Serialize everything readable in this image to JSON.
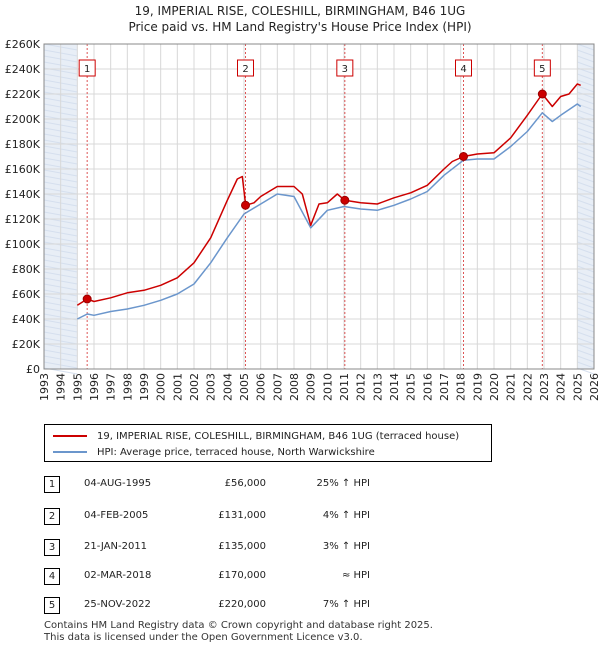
{
  "title_line1": "19, IMPERIAL RISE, COLESHILL, BIRMINGHAM, B46 1UG",
  "title_line2": "Price paid vs. HM Land Registry's House Price Index (HPI)",
  "legend": {
    "property": "19, IMPERIAL RISE, COLESHILL, BIRMINGHAM, B46 1UG (terraced house)",
    "hpi": "HPI: Average price, terraced house, North Warwickshire"
  },
  "colors": {
    "property": "#cc0000",
    "hpi": "#6b96cc",
    "grid": "#d8d8d8",
    "shade": "#e8eef6"
  },
  "transactions": [
    {
      "num": "1",
      "date": "04-AUG-1995",
      "price": "£56,000",
      "hpi": "25% ↑ HPI"
    },
    {
      "num": "2",
      "date": "04-FEB-2005",
      "price": "£131,000",
      "hpi": "4% ↑ HPI"
    },
    {
      "num": "3",
      "date": "21-JAN-2011",
      "price": "£135,000",
      "hpi": "3% ↑ HPI"
    },
    {
      "num": "4",
      "date": "02-MAR-2018",
      "price": "£170,000",
      "hpi": "≈ HPI"
    },
    {
      "num": "5",
      "date": "25-NOV-2022",
      "price": "£220,000",
      "hpi": "7% ↑ HPI"
    }
  ],
  "footer_line1": "Contains HM Land Registry data © Crown copyright and database right 2025.",
  "footer_line2": "This data is licensed under the Open Government Licence v3.0.",
  "chart_data": {
    "type": "line",
    "xlim": [
      1993,
      2026
    ],
    "ylim": [
      0,
      260000
    ],
    "x_ticks": [
      1993,
      1994,
      1995,
      1996,
      1997,
      1998,
      1999,
      2000,
      2001,
      2002,
      2003,
      2004,
      2005,
      2006,
      2007,
      2008,
      2009,
      2010,
      2011,
      2012,
      2013,
      2014,
      2015,
      2016,
      2017,
      2018,
      2019,
      2020,
      2021,
      2022,
      2023,
      2024,
      2025,
      2026
    ],
    "y_ticks": [
      0,
      20000,
      40000,
      60000,
      80000,
      100000,
      120000,
      140000,
      160000,
      180000,
      200000,
      220000,
      240000,
      260000
    ],
    "y_tick_labels": [
      "£0",
      "£20K",
      "£40K",
      "£60K",
      "£80K",
      "£100K",
      "£120K",
      "£140K",
      "£160K",
      "£180K",
      "£200K",
      "£220K",
      "£240K",
      "£260K"
    ],
    "shaded_before": 1995.0,
    "shaded_after": 2025.0,
    "series": [
      {
        "name": "19, IMPERIAL RISE, COLESHILL, BIRMINGHAM, B46 1UG (terraced house)",
        "color": "#cc0000",
        "points": [
          [
            1995.0,
            51000
          ],
          [
            1995.6,
            56000
          ],
          [
            1996.0,
            54000
          ],
          [
            1997.0,
            57000
          ],
          [
            1998.0,
            61000
          ],
          [
            1999.0,
            63000
          ],
          [
            2000.0,
            67000
          ],
          [
            2001.0,
            73000
          ],
          [
            2002.0,
            85000
          ],
          [
            2003.0,
            105000
          ],
          [
            2004.0,
            135000
          ],
          [
            2004.6,
            152000
          ],
          [
            2004.9,
            154000
          ],
          [
            2005.1,
            131000
          ],
          [
            2005.6,
            133000
          ],
          [
            2006.0,
            138000
          ],
          [
            2007.0,
            146000
          ],
          [
            2008.0,
            146000
          ],
          [
            2008.5,
            140000
          ],
          [
            2009.0,
            115000
          ],
          [
            2009.5,
            132000
          ],
          [
            2010.0,
            133000
          ],
          [
            2010.6,
            140000
          ],
          [
            2011.05,
            135000
          ],
          [
            2012.0,
            133000
          ],
          [
            2013.0,
            132000
          ],
          [
            2014.0,
            137000
          ],
          [
            2015.0,
            141000
          ],
          [
            2016.0,
            147000
          ],
          [
            2017.0,
            160000
          ],
          [
            2017.5,
            166000
          ],
          [
            2018.17,
            170000
          ],
          [
            2019.0,
            172000
          ],
          [
            2020.0,
            173000
          ],
          [
            2021.0,
            185000
          ],
          [
            2022.0,
            203000
          ],
          [
            2022.9,
            220000
          ],
          [
            2023.5,
            210000
          ],
          [
            2024.0,
            218000
          ],
          [
            2024.5,
            220000
          ],
          [
            2025.0,
            228000
          ],
          [
            2025.2,
            227000
          ]
        ]
      },
      {
        "name": "HPI: Average price, terraced house, North Warwickshire",
        "color": "#6b96cc",
        "points": [
          [
            1995.0,
            40000
          ],
          [
            1995.6,
            44000
          ],
          [
            1996.0,
            43000
          ],
          [
            1997.0,
            46000
          ],
          [
            1998.0,
            48000
          ],
          [
            1999.0,
            51000
          ],
          [
            2000.0,
            55000
          ],
          [
            2001.0,
            60000
          ],
          [
            2002.0,
            68000
          ],
          [
            2003.0,
            85000
          ],
          [
            2004.0,
            105000
          ],
          [
            2005.0,
            124000
          ],
          [
            2006.0,
            132000
          ],
          [
            2007.0,
            140000
          ],
          [
            2008.0,
            138000
          ],
          [
            2009.0,
            113000
          ],
          [
            2010.0,
            127000
          ],
          [
            2011.0,
            130000
          ],
          [
            2012.0,
            128000
          ],
          [
            2013.0,
            127000
          ],
          [
            2014.0,
            131000
          ],
          [
            2015.0,
            136000
          ],
          [
            2016.0,
            142000
          ],
          [
            2017.0,
            155000
          ],
          [
            2018.17,
            167000
          ],
          [
            2019.0,
            168000
          ],
          [
            2020.0,
            168000
          ],
          [
            2021.0,
            178000
          ],
          [
            2022.0,
            190000
          ],
          [
            2022.9,
            205000
          ],
          [
            2023.5,
            198000
          ],
          [
            2024.0,
            203000
          ],
          [
            2025.0,
            212000
          ],
          [
            2025.2,
            210000
          ]
        ]
      }
    ],
    "sales": [
      {
        "label": "1",
        "x": 1995.59,
        "y": 56000
      },
      {
        "label": "2",
        "x": 2005.09,
        "y": 131000
      },
      {
        "label": "3",
        "x": 2011.05,
        "y": 135000
      },
      {
        "label": "4",
        "x": 2018.17,
        "y": 170000
      },
      {
        "label": "5",
        "x": 2022.9,
        "y": 220000
      }
    ]
  }
}
